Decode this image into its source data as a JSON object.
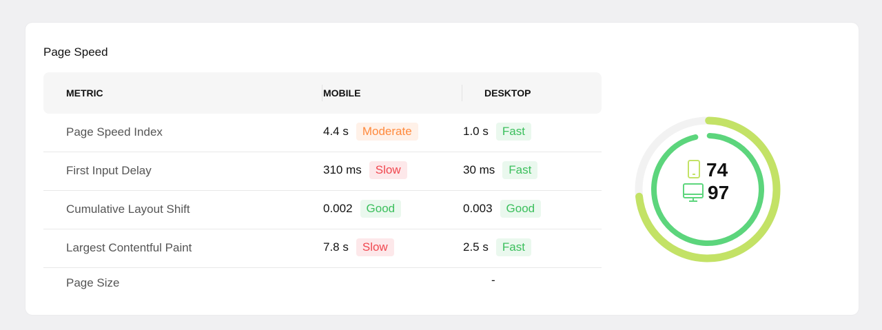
{
  "title": "Page Speed",
  "headers": {
    "metric": "METRIC",
    "mobile": "MOBILE",
    "desktop": "DESKTOP"
  },
  "rows": [
    {
      "metric": "Page Speed Index",
      "mobile": "4.4 s",
      "mobile_status": "Moderate",
      "desktop": "1.0 s",
      "desktop_status": "Fast"
    },
    {
      "metric": "First Input Delay",
      "mobile": "310 ms",
      "mobile_status": "Slow",
      "desktop": "30 ms",
      "desktop_status": "Fast"
    },
    {
      "metric": "Cumulative Layout Shift",
      "mobile": "0.002",
      "mobile_status": "Good",
      "desktop": "0.003",
      "desktop_status": "Good"
    },
    {
      "metric": "Largest Contentful Paint",
      "mobile": "7.8 s",
      "mobile_status": "Slow",
      "desktop": "2.5 s",
      "desktop_status": "Fast"
    }
  ],
  "page_size": {
    "metric": "Page Size",
    "value": "-"
  },
  "scores": {
    "mobile": 74,
    "desktop": 97,
    "mobile_color": "#c3e266",
    "desktop_color": "#5cd57c",
    "track_color": "#f2f2f2",
    "mobile_icon": "smartphone-icon",
    "desktop_icon": "monitor-icon"
  }
}
